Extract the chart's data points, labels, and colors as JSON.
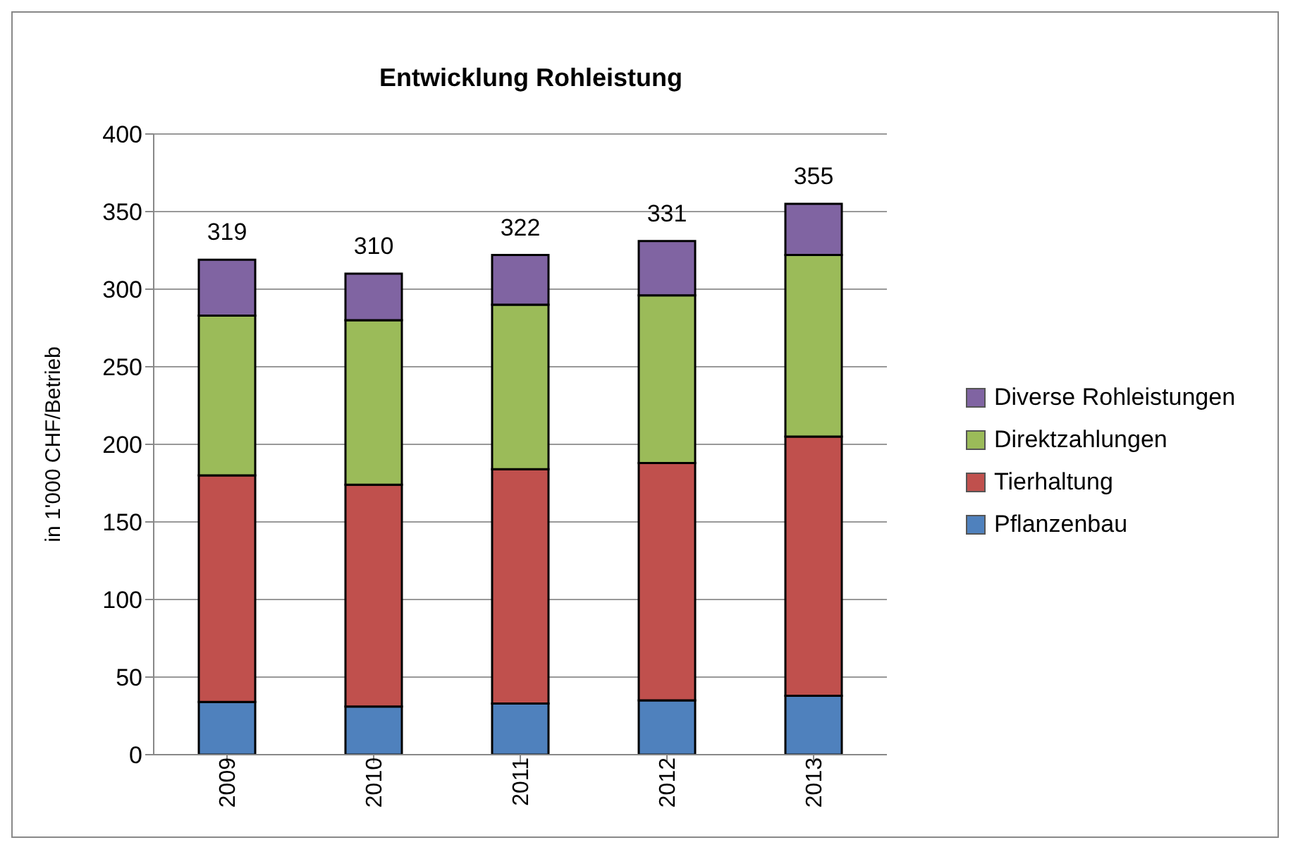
{
  "chart_data": {
    "type": "bar",
    "title": "Entwicklung Rohleistung",
    "ylabel": "in 1'000 CHF/Betrieb",
    "categories": [
      "2009",
      "2010",
      "2011",
      "2012",
      "2013"
    ],
    "stacked": true,
    "series": [
      {
        "name": "Pflanzenbau",
        "color": "#4f81bd",
        "values": [
          34,
          31,
          33,
          35,
          38
        ]
      },
      {
        "name": "Tierhaltung",
        "color": "#c0504d",
        "values": [
          146,
          143,
          151,
          153,
          167
        ]
      },
      {
        "name": "Direktzahlungen",
        "color": "#9bbb59",
        "values": [
          103,
          106,
          106,
          108,
          117
        ]
      },
      {
        "name": "Diverse Rohleistungen",
        "color": "#8064a2",
        "values": [
          36,
          30,
          32,
          35,
          33
        ]
      }
    ],
    "totals": [
      "319",
      "310",
      "322",
      "331",
      "355"
    ],
    "ylim": [
      0,
      400
    ],
    "yticks": [
      0,
      50,
      100,
      150,
      200,
      250,
      300,
      350,
      400
    ],
    "grid": "y",
    "legend": "right"
  }
}
